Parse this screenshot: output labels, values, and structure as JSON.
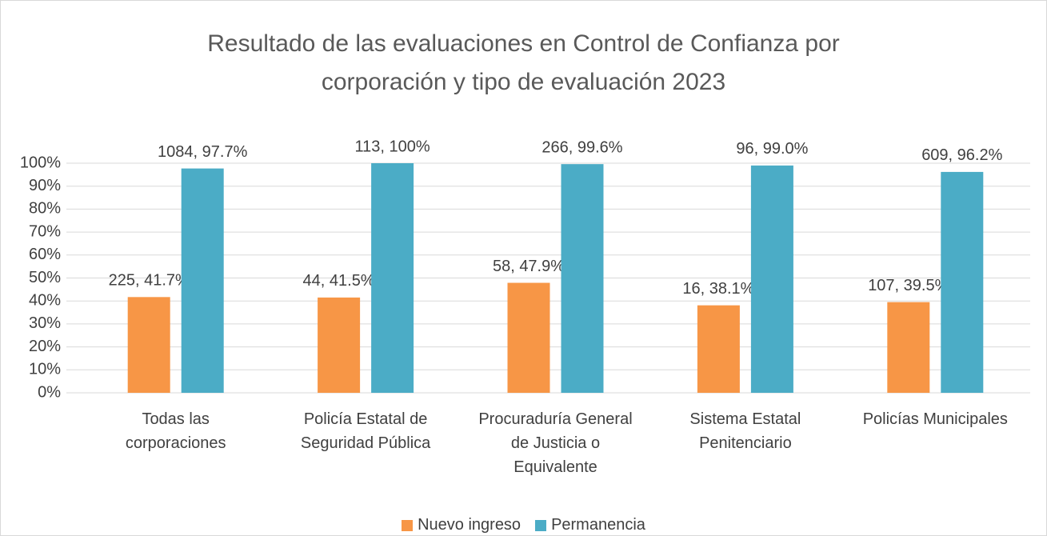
{
  "chart_data": {
    "type": "bar",
    "title": "Resultado de las evaluaciones en Control de Confianza por corporación y tipo de evaluación 2023",
    "categories": [
      "Todas las corporaciones",
      "Policía Estatal de Seguridad Pública",
      "Procuraduría General de Justicia o Equivalente",
      "Sistema Estatal Penitenciario",
      "Policías Municipales"
    ],
    "series": [
      {
        "name": "Nuevo ingreso",
        "color": "#f79646",
        "values": [
          41.7,
          41.5,
          47.9,
          38.1,
          39.5
        ],
        "value_labels": [
          "225, 41.7%",
          "44, 41.5%",
          "58, 47.9%",
          "16, 38.1%",
          "107, 39.5%"
        ]
      },
      {
        "name": "Permanencia",
        "color": "#4bacc6",
        "values": [
          97.7,
          100,
          99.6,
          99.0,
          96.2
        ],
        "value_labels": [
          "1084, 97.7%",
          "113, 100%",
          "266, 99.6%",
          "96, 99.0%",
          "609, 96.2%"
        ]
      }
    ],
    "ylim": [
      0,
      100
    ],
    "yticks": [
      {
        "value": 0,
        "label": "0%"
      },
      {
        "value": 10,
        "label": "10%"
      },
      {
        "value": 20,
        "label": "20%"
      },
      {
        "value": 30,
        "label": "30%"
      },
      {
        "value": 40,
        "label": "40%"
      },
      {
        "value": 50,
        "label": "50%"
      },
      {
        "value": 60,
        "label": "60%"
      },
      {
        "value": 70,
        "label": "70%"
      },
      {
        "value": 80,
        "label": "80%"
      },
      {
        "value": 90,
        "label": "90%"
      },
      {
        "value": 100,
        "label": "100%"
      }
    ],
    "grid": true,
    "legend": "bottom"
  }
}
